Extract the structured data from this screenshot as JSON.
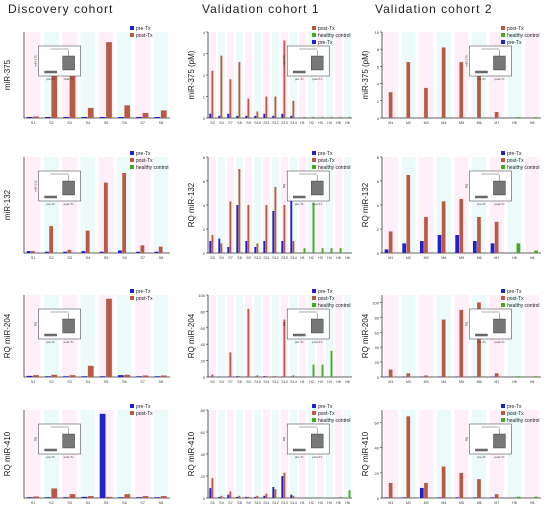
{
  "column_titles": [
    "Discovery cohort",
    "Validation cohort 1",
    "Validation cohort 2"
  ],
  "colors": {
    "pre": "#2222cc",
    "post": "#b85a45",
    "healthy": "#44aa22",
    "box": "#777777",
    "bg_stripe_pink": "#ffd0ee",
    "bg_stripe_cyan": "#c8f2f2"
  },
  "chart_data": [
    {
      "type": "bar",
      "panel": "discovery-mir375",
      "ylabel": "miR-375",
      "categories": [
        "S1",
        "S2",
        "S3",
        "S4",
        "S5",
        "S6",
        "S7",
        "S8"
      ],
      "legend": [
        "pre-Tx",
        "post-Tx"
      ],
      "series": [
        {
          "name": "pre-Tx",
          "values": [
            0.2,
            0.2,
            0.2,
            0.2,
            0.2,
            0.2,
            0.2,
            0.2
          ]
        },
        {
          "name": "post-Tx",
          "values": [
            0.3,
            11,
            9.5,
            2,
            15,
            2.5,
            1,
            1.5
          ]
        }
      ],
      "ylim": [
        0,
        17
      ],
      "inset_axis": "miR-375",
      "inset_labels": [
        "pre-Tx",
        "post-Tx"
      ]
    },
    {
      "type": "bar",
      "panel": "v1-mir375",
      "ylabel": "miR-375 (pM)",
      "categories": [
        "S2",
        "S4",
        "S7",
        "S8",
        "S9",
        "S10",
        "S11",
        "S12",
        "S13",
        "S14",
        "H1",
        "H2",
        "H3",
        "H4",
        "H5",
        "H6"
      ],
      "legend": [
        "post-Tx",
        "healthy control",
        "pre-Tx"
      ],
      "series": [
        {
          "name": "pre-Tx",
          "values": [
            0.2,
            0.1,
            0.2,
            0.1,
            0.1,
            0.1,
            0.2,
            0.1,
            0.2,
            0.1,
            0,
            0,
            0,
            0,
            0,
            0
          ]
        },
        {
          "name": "post-Tx",
          "values": [
            2.2,
            2.9,
            1.8,
            2.6,
            0.9,
            0.3,
            1,
            1,
            3.6,
            0.8,
            0,
            0,
            0,
            0,
            0,
            0
          ]
        },
        {
          "name": "healthy control",
          "values": [
            0,
            0,
            0,
            0,
            0,
            0,
            0,
            0,
            0,
            0,
            0.05,
            0.05,
            0.05,
            0.05,
            0.05,
            0.05
          ]
        }
      ],
      "ylim": [
        0,
        4
      ],
      "yticks": [
        0,
        1,
        2,
        3,
        4
      ],
      "inset_axis": "miR-375",
      "inset_labels": [
        "pre-Tx",
        "post-Tx"
      ]
    },
    {
      "type": "bar",
      "panel": "v2-mir375",
      "ylabel": "miR-375 (pM)",
      "categories": [
        "M1",
        "M2",
        "M3",
        "M4",
        "M5",
        "M6",
        "M7",
        "H5",
        "H6"
      ],
      "legend": [
        "post-Tx",
        "healthy control",
        "pre-Tx"
      ],
      "series": [
        {
          "name": "pre-Tx",
          "values": [
            0,
            0,
            0,
            0,
            0,
            0,
            0,
            0,
            0
          ]
        },
        {
          "name": "post-Tx",
          "values": [
            3,
            6.5,
            3.5,
            8.2,
            6.5,
            7.5,
            0.7,
            0,
            0
          ]
        },
        {
          "name": "healthy control",
          "values": [
            0,
            0,
            0,
            0,
            0,
            0,
            0,
            0.1,
            0.1
          ]
        }
      ],
      "ylim": [
        0,
        10
      ],
      "yticks": [
        0,
        2,
        4,
        6,
        8,
        10
      ],
      "inset_axis": "miR-375",
      "inset_labels": [
        "pre-Tx",
        "post-Tx"
      ]
    },
    {
      "type": "bar",
      "panel": "discovery-mir132",
      "ylabel": "miR-132",
      "categories": [
        "S1",
        "S2",
        "S3",
        "S4",
        "S5",
        "S6",
        "S7",
        "S8"
      ],
      "legend": [
        "pre-Tx",
        "post-Tx",
        "healthy control"
      ],
      "series": [
        {
          "name": "pre-Tx",
          "values": [
            0.3,
            0.2,
            0.2,
            0.3,
            0.2,
            0.4,
            0.2,
            0.2
          ]
        },
        {
          "name": "post-Tx",
          "values": [
            0.3,
            4.2,
            0.5,
            3.5,
            11,
            12.5,
            1.2,
            1
          ]
        },
        {
          "name": "healthy control",
          "values": [
            0,
            0,
            0,
            0,
            0,
            0,
            0,
            0
          ]
        }
      ],
      "ylim": [
        0,
        15
      ],
      "inset_axis": "miR-132",
      "inset_labels": [
        "pre-Tx",
        "post-Tx"
      ]
    },
    {
      "type": "bar",
      "panel": "v1-mir132",
      "ylabel": "RQ miR-132",
      "categories": [
        "S2",
        "S4",
        "S7",
        "S8",
        "S9",
        "S10",
        "S11",
        "S12",
        "S13",
        "S14",
        "H1",
        "H2",
        "H3",
        "H4",
        "H5",
        "H6"
      ],
      "legend": [
        "pre-Tx",
        "post-Tx",
        "healthy control"
      ],
      "series": [
        {
          "name": "pre-Tx",
          "values": [
            1,
            1.2,
            0.5,
            4,
            1,
            0.5,
            1,
            3.5,
            1,
            6.5,
            0,
            0,
            0,
            0,
            0,
            0
          ]
        },
        {
          "name": "post-Tx",
          "values": [
            1.5,
            0.8,
            4.3,
            7,
            4,
            0.8,
            4,
            5.5,
            4,
            1,
            0,
            0,
            0,
            0,
            0,
            0
          ]
        },
        {
          "name": "healthy control",
          "values": [
            0,
            0,
            0,
            0,
            0,
            0,
            0,
            0,
            0,
            0,
            0.4,
            4.2,
            0.4,
            0.4,
            0.4,
            0
          ]
        }
      ],
      "ylim": [
        0,
        8
      ],
      "yticks": [
        0,
        2,
        4,
        6,
        8
      ],
      "inset_axis": "RQ",
      "inset_labels": [
        "pre-Tx",
        "post-Tx"
      ]
    },
    {
      "type": "bar",
      "panel": "v2-mir132",
      "ylabel": "RQ miR-132",
      "categories": [
        "M1",
        "M2",
        "M3",
        "M4",
        "M5",
        "M6",
        "M7",
        "H5",
        "H6"
      ],
      "legend": [
        "pre-Tx",
        "post-Tx",
        "healthy control"
      ],
      "series": [
        {
          "name": "pre-Tx",
          "values": [
            0.3,
            0.8,
            1,
            1.5,
            1.5,
            1,
            0.8,
            0,
            0
          ]
        },
        {
          "name": "post-Tx",
          "values": [
            1.8,
            6.5,
            3,
            4.3,
            4.5,
            3,
            2.6,
            0,
            0
          ]
        },
        {
          "name": "healthy control",
          "values": [
            0,
            0,
            0,
            0,
            0,
            0,
            0,
            0.8,
            0.2
          ]
        }
      ],
      "ylim": [
        0,
        8
      ],
      "yticks": [
        0,
        2,
        4,
        6,
        8
      ],
      "inset_axis": "RQ",
      "inset_labels": [
        "pre-Tx",
        "post-Tx"
      ]
    },
    {
      "type": "bar",
      "panel": "discovery-mir204",
      "ylabel": "RQ miR-204",
      "categories": [
        "S1",
        "S2",
        "S3",
        "S4",
        "S5",
        "S6",
        "S7",
        "S8"
      ],
      "legend": [
        "pre-Tx",
        "post-Tx"
      ],
      "series": [
        {
          "name": "pre-Tx",
          "values": [
            0.3,
            0.2,
            0.2,
            0.2,
            0.2,
            0.5,
            0.2,
            0.2
          ]
        },
        {
          "name": "post-Tx",
          "values": [
            0.5,
            0.6,
            0.5,
            3,
            21,
            0.6,
            0.4,
            0.4
          ]
        }
      ],
      "ylim": [
        0,
        22
      ],
      "inset_axis": "RQ",
      "inset_labels": [
        "pre-Tx",
        "post-Tx"
      ]
    },
    {
      "type": "bar",
      "panel": "v1-mir204",
      "ylabel": "RQ miR-204",
      "categories": [
        "S2",
        "S4",
        "S7",
        "S8",
        "S9",
        "S10",
        "S11",
        "S12",
        "S13",
        "S14",
        "H1",
        "H2",
        "H3",
        "H4",
        "H5",
        "H6"
      ],
      "legend": [
        "pre-Tx",
        "post-Tx",
        "healthy control"
      ],
      "series": [
        {
          "name": "pre-Tx",
          "values": [
            0.5,
            0.5,
            0.5,
            1,
            0.5,
            0.5,
            1,
            0.5,
            0.5,
            0.5,
            0,
            0,
            0,
            0,
            0,
            0
          ]
        },
        {
          "name": "post-Tx",
          "values": [
            3,
            0,
            30,
            1,
            83,
            2,
            1,
            1,
            70,
            2,
            0,
            0,
            0,
            0,
            0,
            0
          ]
        },
        {
          "name": "healthy control",
          "values": [
            0,
            0,
            0,
            0,
            0,
            0,
            0,
            0,
            0,
            0,
            0,
            15,
            15,
            32,
            0,
            0
          ]
        }
      ],
      "ylim": [
        0,
        100
      ],
      "yticks": [
        0,
        20,
        40,
        60,
        80,
        100
      ],
      "inset_axis": "RQ",
      "inset_labels": [
        "pre-Tx",
        "post-Tx"
      ]
    },
    {
      "type": "bar",
      "panel": "v2-mir204",
      "ylabel": "RQ miR-204",
      "categories": [
        "M1",
        "M2",
        "M3",
        "M4",
        "M5",
        "M6",
        "M7",
        "H5",
        "H6"
      ],
      "legend": [
        "pre-Tx",
        "post-Tx",
        "healthy control"
      ],
      "series": [
        {
          "name": "pre-Tx",
          "values": [
            0.5,
            0.5,
            0.5,
            0.5,
            0.5,
            0.5,
            0.5,
            0,
            0
          ]
        },
        {
          "name": "post-Tx",
          "values": [
            10,
            5,
            2,
            77,
            90,
            100,
            5,
            0,
            0
          ]
        },
        {
          "name": "healthy control",
          "values": [
            0,
            0,
            0,
            0,
            0,
            0,
            0,
            1,
            1
          ]
        }
      ],
      "ylim": [
        0,
        110
      ],
      "yticks": [
        0,
        20,
        40,
        60,
        80,
        100
      ],
      "inset_axis": "RQ",
      "inset_labels": [
        "pre-Tx",
        "post-Tx"
      ]
    },
    {
      "type": "bar",
      "panel": "discovery-mir410",
      "ylabel": "RQ miR-410",
      "categories": [
        "S1",
        "S2",
        "S3",
        "S4",
        "S5",
        "S6",
        "S7",
        "S8"
      ],
      "legend": [
        "pre-Tx",
        "post-Tx"
      ],
      "series": [
        {
          "name": "pre-Tx",
          "values": [
            0.2,
            0.2,
            0.2,
            0.3,
            22,
            0.2,
            0.2,
            0.2
          ]
        },
        {
          "name": "post-Tx",
          "values": [
            0.4,
            2.5,
            1,
            0.5,
            0.3,
            1,
            0.5,
            0.5
          ]
        }
      ],
      "ylim": [
        0,
        23
      ],
      "inset_axis": "RQ",
      "inset_labels": [
        "pre-Tx",
        "post-Tx"
      ]
    },
    {
      "type": "bar",
      "panel": "v1-mir410",
      "ylabel": "RQ miR-410",
      "categories": [
        "S2",
        "S4",
        "S7",
        "S8",
        "S9",
        "S10",
        "S11",
        "S12",
        "S13",
        "S14",
        "H1",
        "H2",
        "H3",
        "H4",
        "H5",
        "H6"
      ],
      "legend": [
        "pre-Tx",
        "post-Tx",
        "healthy control"
      ],
      "series": [
        {
          "name": "pre-Tx",
          "values": [
            9,
            1,
            3,
            1,
            1,
            1,
            2,
            10,
            20,
            3,
            0,
            0,
            0,
            0,
            0,
            0
          ]
        },
        {
          "name": "post-Tx",
          "values": [
            18,
            2,
            6,
            2,
            1,
            2,
            4,
            8,
            23,
            2,
            0,
            0,
            0,
            0,
            0,
            0
          ]
        },
        {
          "name": "healthy control",
          "values": [
            0,
            0,
            0,
            0,
            0,
            0,
            0,
            0,
            0,
            0,
            0.5,
            0.5,
            0.5,
            0.5,
            1,
            7
          ]
        }
      ],
      "ylim": [
        0,
        80
      ],
      "yticks": [
        0,
        20,
        40,
        60,
        80
      ],
      "inset_axis": "RQ",
      "inset_labels": [
        "pre-Tx",
        "post-Tx"
      ]
    },
    {
      "type": "bar",
      "panel": "v2-mir410",
      "ylabel": "RQ miR-410",
      "categories": [
        "M1",
        "M2",
        "M3",
        "M4",
        "M5",
        "M6",
        "M7",
        "H5",
        "H6"
      ],
      "legend": [
        "pre-Tx",
        "post-Tx",
        "healthy control"
      ],
      "series": [
        {
          "name": "pre-Tx",
          "values": [
            0.5,
            0.5,
            8,
            0.5,
            0.5,
            0.5,
            0.5,
            0,
            0
          ]
        },
        {
          "name": "post-Tx",
          "values": [
            12,
            65,
            12,
            25,
            20,
            15,
            3,
            0,
            0
          ]
        },
        {
          "name": "healthy control",
          "values": [
            0,
            0,
            0,
            0,
            0,
            0,
            0,
            1,
            1
          ]
        }
      ],
      "ylim": [
        0,
        70
      ],
      "yticks": [
        0,
        20,
        40,
        60
      ],
      "inset_axis": "RQ",
      "inset_labels": [
        "pre-Tx",
        "post-Tx"
      ]
    }
  ]
}
